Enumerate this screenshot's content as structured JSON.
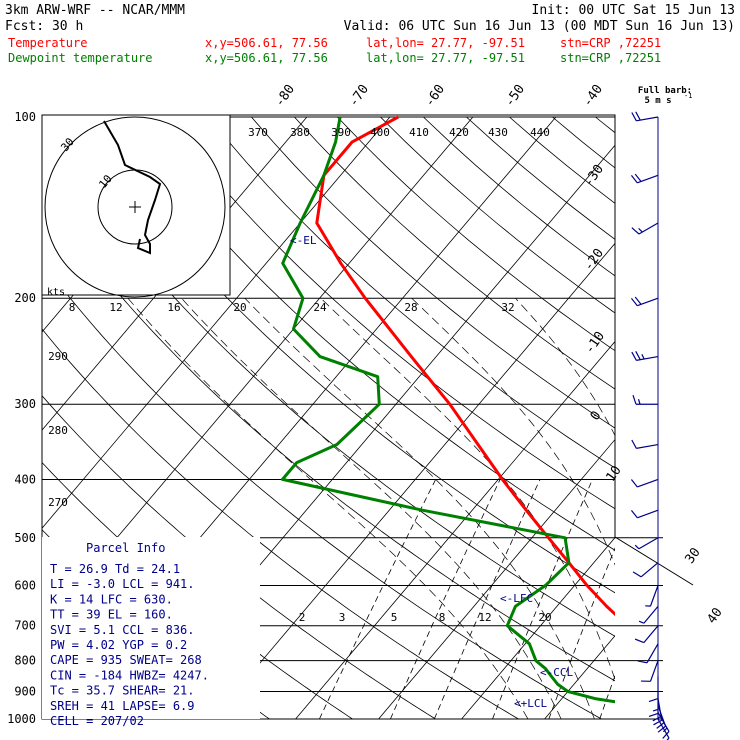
{
  "header": {
    "model": "3km ARW-WRF -- NCAR/MMM",
    "init": "Init: 00 UTC Sat 15 Jun 13",
    "fcst": "Fcst:    30 h",
    "valid": "Valid: 06 UTC Sun 16 Jun 13 (00 MDT Sun 16 Jun 13)",
    "temp_label": "Temperature",
    "dew_label": "Dewpoint temperature",
    "xy": "x,y=506.61, 77.56",
    "latlon": "lat,lon= 27.77, -97.51",
    "stn": "stn=CRP ,72251"
  },
  "barb_legend": {
    "line1": "Full barb:",
    "line2": "5 m s"
  },
  "pressure_labels": [
    "100",
    "200",
    "300",
    "400",
    "500",
    "600",
    "700",
    "800",
    "900",
    "1000"
  ],
  "theta_labels": [
    "370",
    "380",
    "390",
    "400",
    "410",
    "420",
    "430",
    "440"
  ],
  "theta_low_labels": [
    "290",
    "280",
    "270"
  ],
  "isotherm_labels": [
    "-80",
    "-70",
    "-60",
    "-50",
    "-40",
    "-30",
    "-20",
    "-10",
    "0",
    "10",
    "30",
    "40"
  ],
  "mixing_labels": [
    "2",
    "3",
    "5",
    "8",
    "12",
    "20"
  ],
  "hodograph": {
    "units": "kts",
    "ring_labels": [
      "10",
      "30"
    ],
    "speed_labels": [
      "8",
      "12",
      "16",
      "20",
      "24",
      "28",
      "32"
    ]
  },
  "markers": {
    "el": "<-EL",
    "lfc": "<-LFC",
    "ccl": "<-CCL",
    "lcl": "<+LCL"
  },
  "parcel": {
    "title": "Parcel Info",
    "rows": [
      "T  =   26.9  Td =  24.1",
      "LI =   -3.0  LCL =  941.",
      "K  =     14  LFC = 630.",
      "TT =     39  EL  =  160.",
      "SVI =   5.1  CCL =  836.",
      "PW =   4.02  YGP =   0.2",
      "CAPE =  935  SWEAT=  268",
      "CIN =  -184  HWBZ= 4247.",
      "Tc =   35.7  SHEAR=  21.",
      "SREH =   41  LAPSE=  6.9",
      "CELL = 207/02"
    ]
  },
  "colors": {
    "temperature": "#ff0000",
    "dewpoint": "#008000",
    "parcel_text": "#00008b",
    "barbs": "#00008b",
    "grid": "#000000"
  },
  "chart_data": {
    "type": "line",
    "title": "",
    "ylabel": "",
    "xlabel": "",
    "y_scale": "log-pressure",
    "ylim": [
      1000,
      100
    ],
    "series": [
      {
        "name": "Temperature",
        "p": [
          1000,
          975,
          950,
          925,
          900,
          875,
          850,
          825,
          800,
          750,
          700,
          650,
          600,
          550,
          500,
          450,
          400,
          350,
          300,
          250,
          200,
          175,
          150,
          125,
          110,
          100
        ],
        "values": [
          26.9,
          24.0,
          22.0,
          21.0,
          21.5,
          21.0,
          20.0,
          19.0,
          17.5,
          14.5,
          10.5,
          6.0,
          1.5,
          -3.0,
          -8.0,
          -13.5,
          -19.5,
          -26.0,
          -33.5,
          -43.0,
          -54.5,
          -61.0,
          -68.0,
          -72.0,
          -72.0,
          -69.0
        ]
      },
      {
        "name": "Dewpoint temperature",
        "p": [
          1000,
          975,
          950,
          925,
          900,
          875,
          850,
          825,
          800,
          750,
          700,
          650,
          600,
          550,
          500,
          450,
          400,
          375,
          350,
          300,
          270,
          250,
          225,
          200,
          175,
          150,
          125,
          110,
          100
        ],
        "values": [
          24.1,
          23.5,
          20.0,
          14.0,
          10.0,
          8.0,
          6.5,
          5.0,
          3.0,
          0.5,
          -4.0,
          -5.0,
          -3.5,
          -3.0,
          -6.0,
          -26.0,
          -46.0,
          -46.0,
          -43.0,
          -42.0,
          -45.0,
          -54.0,
          -60.0,
          -62.0,
          -68.0,
          -70.0,
          -72.0,
          -74.0,
          -76.0
        ]
      }
    ],
    "wind_barbs": {
      "p": [
        1000,
        975,
        950,
        925,
        900,
        850,
        800,
        750,
        700,
        650,
        600,
        550,
        500,
        450,
        400,
        350,
        300,
        250,
        200,
        150,
        125,
        100
      ],
      "speed_kts": [
        10,
        15,
        20,
        20,
        15,
        10,
        10,
        10,
        10,
        5,
        5,
        10,
        5,
        10,
        10,
        10,
        15,
        25,
        20,
        15,
        20,
        20
      ],
      "direction_deg": [
        150,
        150,
        160,
        170,
        180,
        180,
        200,
        210,
        220,
        220,
        200,
        230,
        240,
        250,
        250,
        260,
        270,
        260,
        250,
        240,
        250,
        260
      ]
    },
    "markers": {
      "LCL": 941,
      "CCL": 836,
      "LFC": 630,
      "EL": 160
    }
  }
}
